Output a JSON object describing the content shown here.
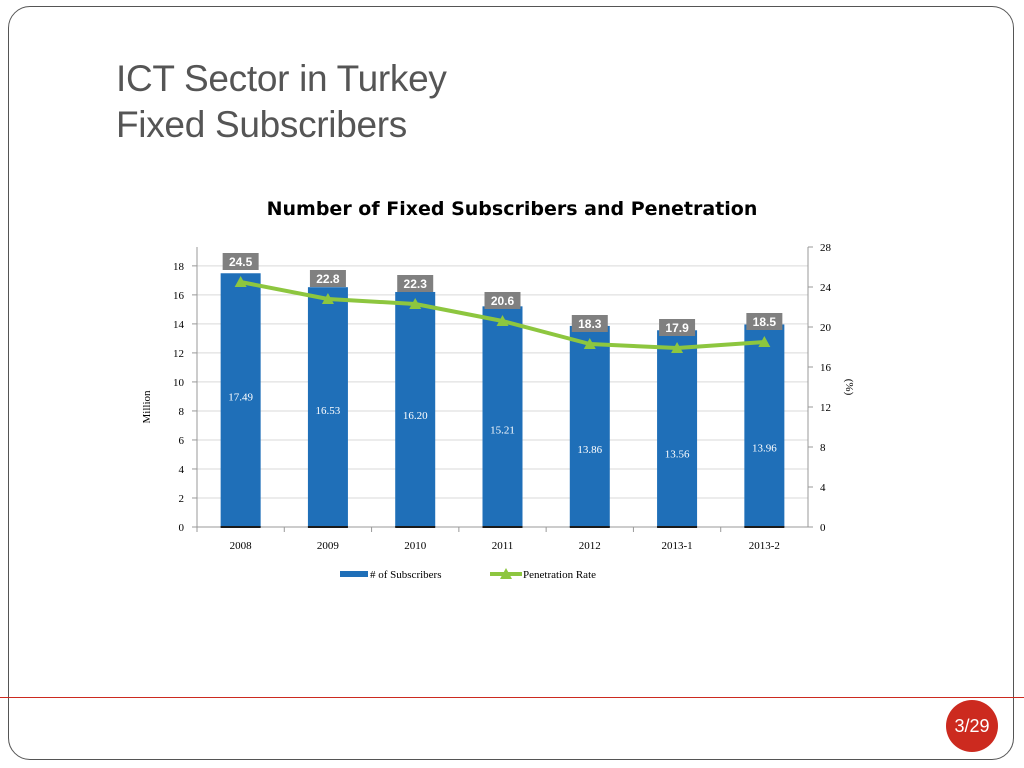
{
  "slide": {
    "title_line1": "ICT Sector in Turkey",
    "title_line2": "Fixed Subscribers",
    "page_number": "3/29"
  },
  "colors": {
    "bar": "#1f6fb8",
    "line": "#8dc63f",
    "label_box": "#808080",
    "accent": "#cc2a1f"
  },
  "chart_data": {
    "type": "bar",
    "title": "Number of Fixed Subscribers and Penetration",
    "categories": [
      "2008",
      "2009",
      "2010",
      "2011",
      "2012",
      "2013-1",
      "2013-2"
    ],
    "series": [
      {
        "name": "# of Subscribers",
        "type": "bar",
        "axis": "left",
        "values": [
          17.49,
          16.53,
          16.2,
          15.21,
          13.86,
          13.56,
          13.96
        ]
      },
      {
        "name": "Penetration Rate",
        "type": "line",
        "axis": "right",
        "values": [
          24.5,
          22.8,
          22.3,
          20.6,
          18.3,
          17.9,
          18.5
        ]
      }
    ],
    "bar_value_labels": [
      "17.49",
      "16.53",
      "16.20",
      "15.21",
      "13.86",
      "13.56",
      "13.96"
    ],
    "line_value_labels": [
      "24.5",
      "22.8",
      "22.3",
      "20.6",
      "18.3",
      "17.9",
      "18.5"
    ],
    "ylabel": "Million",
    "y2label": "(%)",
    "ylim": [
      0,
      19.3
    ],
    "y2lim": [
      0,
      28
    ],
    "yticks": [
      "0",
      "2",
      "4",
      "6",
      "8",
      "10",
      "12",
      "14",
      "16",
      "18"
    ],
    "y2ticks": [
      "0",
      "4",
      "8",
      "12",
      "16",
      "20",
      "24",
      "28"
    ],
    "grid": true,
    "legend": {
      "position": "bottom",
      "entries": [
        "# of Subscribers",
        "Penetration Rate"
      ]
    }
  }
}
